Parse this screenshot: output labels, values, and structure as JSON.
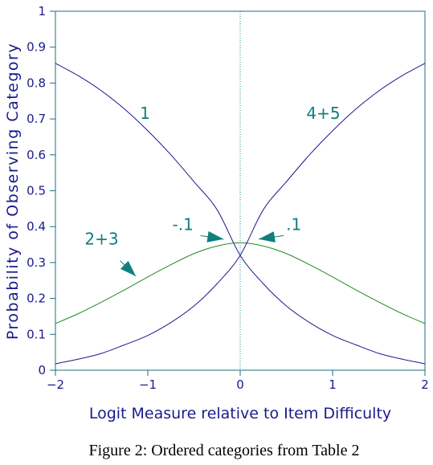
{
  "caption": "Figure 2: Ordered categories from Table 2",
  "chart_data": {
    "type": "line",
    "title": "",
    "xlabel": "Logit Measure relative to Item Difficulty",
    "ylabel": "Probability of Observing Category",
    "xlim": [
      -2,
      2
    ],
    "ylim": [
      0,
      1
    ],
    "x_ticks": [
      -2,
      -1,
      0,
      1,
      2
    ],
    "x_tick_labels": [
      "−2",
      "−1",
      "0",
      "1",
      "2"
    ],
    "y_ticks": [
      0,
      0.1,
      0.2,
      0.3,
      0.4,
      0.5,
      0.6,
      0.7,
      0.8,
      0.9,
      1
    ],
    "y_tick_labels": [
      "0",
      "0.1",
      "0.2",
      "0.3",
      "0.4",
      "0.5",
      "0.6",
      "0.7",
      "0.8",
      "0.9",
      "1"
    ],
    "grid": false,
    "reference_line": {
      "x": 0,
      "style": "dotted"
    },
    "x": [
      -2,
      -1.75,
      -1.5,
      -1.25,
      -1,
      -0.75,
      -0.5,
      -0.25,
      0,
      0.25,
      0.5,
      0.75,
      1,
      1.25,
      1.5,
      1.75,
      2
    ],
    "series": [
      {
        "name": "1",
        "color": "#1a1a8c",
        "values": [
          0.855,
          0.82,
          0.778,
          0.727,
          0.667,
          0.6,
          0.525,
          0.447,
          0.32,
          0.241,
          0.179,
          0.133,
          0.097,
          0.071,
          0.047,
          0.031,
          0.018
        ]
      },
      {
        "name": "2+3",
        "color": "#1f8a1f",
        "values": [
          0.13,
          0.158,
          0.19,
          0.224,
          0.26,
          0.294,
          0.325,
          0.346,
          0.355,
          0.346,
          0.325,
          0.294,
          0.26,
          0.224,
          0.19,
          0.158,
          0.13
        ]
      },
      {
        "name": "4+5",
        "color": "#1a1a8c",
        "values": [
          0.018,
          0.031,
          0.047,
          0.071,
          0.097,
          0.133,
          0.179,
          0.241,
          0.32,
          0.447,
          0.525,
          0.6,
          0.667,
          0.727,
          0.778,
          0.82,
          0.855
        ]
      }
    ],
    "annotations": [
      {
        "text": "1",
        "x": -1.03,
        "y": 0.7
      },
      {
        "text": "4+5",
        "x": 0.9,
        "y": 0.7
      },
      {
        "text": "2+3",
        "x": -1.5,
        "y": 0.35
      },
      {
        "text": "-.1",
        "x": -0.62,
        "y": 0.39
      },
      {
        "text": ".1",
        "x": 0.58,
        "y": 0.39
      }
    ],
    "arrows": [
      {
        "from": [
          -0.43,
          0.375
        ],
        "to": [
          -0.18,
          0.365
        ]
      },
      {
        "from": [
          0.47,
          0.375
        ],
        "to": [
          0.2,
          0.365
        ]
      },
      {
        "from": [
          -1.3,
          0.305
        ],
        "to": [
          -1.13,
          0.262
        ]
      }
    ]
  }
}
